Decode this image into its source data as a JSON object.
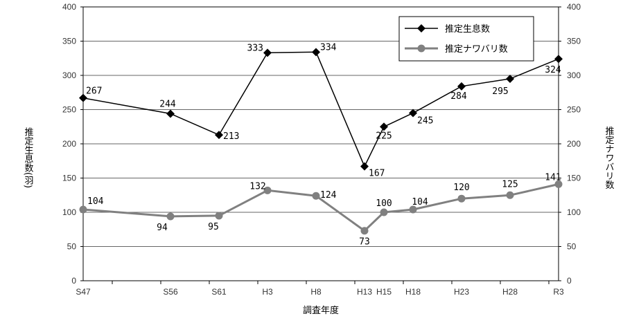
{
  "chart_data": {
    "type": "line",
    "x": [
      "S47",
      "S56",
      "S61",
      "H3",
      "H8",
      "H13",
      "H15",
      "H18",
      "H23",
      "H28",
      "R3"
    ],
    "x_years": [
      1972,
      1981,
      1986,
      1991,
      1996,
      2001,
      2003,
      2006,
      2011,
      2016,
      2021
    ],
    "series": [
      {
        "name": "推定生息数",
        "axis": "left",
        "color": "#000000",
        "marker": "diamond",
        "values": [
          267,
          244,
          213,
          333,
          334,
          167,
          225,
          245,
          284,
          295,
          324
        ]
      },
      {
        "name": "推定ナワバリ数",
        "axis": "right",
        "color": "#808080",
        "marker": "circle",
        "values": [
          104,
          94,
          95,
          132,
          124,
          73,
          100,
          104,
          120,
          125,
          141
        ]
      }
    ],
    "xlabel": "調査年度",
    "ylabel": "推定生息数(羽)",
    "y2label": "推定ナワバリ数",
    "ylim": [
      0,
      400
    ],
    "y2lim": [
      0,
      400
    ],
    "yticks": [
      0,
      50,
      100,
      150,
      200,
      250,
      300,
      350,
      400
    ],
    "grid": true,
    "legend": "top-right"
  }
}
